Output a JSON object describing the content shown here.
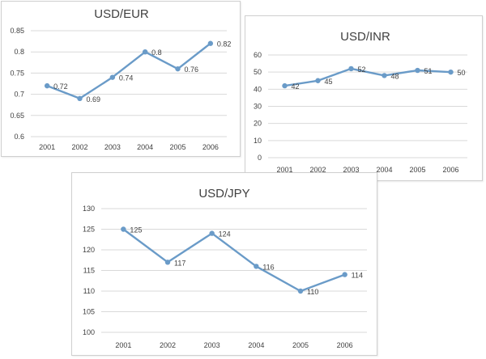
{
  "colors": {
    "series": "#6a9bc8",
    "grid": "#d9d9d9",
    "text": "#404040"
  },
  "chart_data": [
    {
      "type": "line",
      "title": "USD/EUR",
      "categories": [
        "2001",
        "2002",
        "2003",
        "2004",
        "2005",
        "2006"
      ],
      "series": [
        {
          "values": [
            0.72,
            0.69,
            0.74,
            0.8,
            0.76,
            0.82
          ]
        }
      ],
      "data_labels": [
        "0.72",
        "0.69",
        "0.74",
        "0.8",
        "0.76",
        "0.82"
      ],
      "ylim": [
        0.6,
        0.85
      ],
      "yticks": [
        "0.6",
        "0.65",
        "0.7",
        "0.75",
        "0.8",
        "0.85"
      ],
      "grid": true
    },
    {
      "type": "line",
      "title": "USD/INR",
      "categories": [
        "2001",
        "2002",
        "2003",
        "2004",
        "2005",
        "2006"
      ],
      "series": [
        {
          "values": [
            42,
            45,
            52,
            48,
            51,
            50
          ]
        }
      ],
      "data_labels": [
        "42",
        "45",
        "52",
        "48",
        "51",
        "50"
      ],
      "ylim": [
        0,
        60
      ],
      "yticks": [
        "0",
        "10",
        "20",
        "30",
        "40",
        "50",
        "60"
      ],
      "grid": true
    },
    {
      "type": "line",
      "title": "USD/JPY",
      "categories": [
        "2001",
        "2002",
        "2003",
        "2004",
        "2005",
        "2006"
      ],
      "series": [
        {
          "values": [
            125,
            117,
            124,
            116,
            110,
            114
          ]
        }
      ],
      "data_labels": [
        "125",
        "117",
        "124",
        "116",
        "110",
        "114"
      ],
      "ylim": [
        100,
        130
      ],
      "yticks": [
        "100",
        "105",
        "110",
        "115",
        "120",
        "125",
        "130"
      ],
      "grid": true
    }
  ]
}
